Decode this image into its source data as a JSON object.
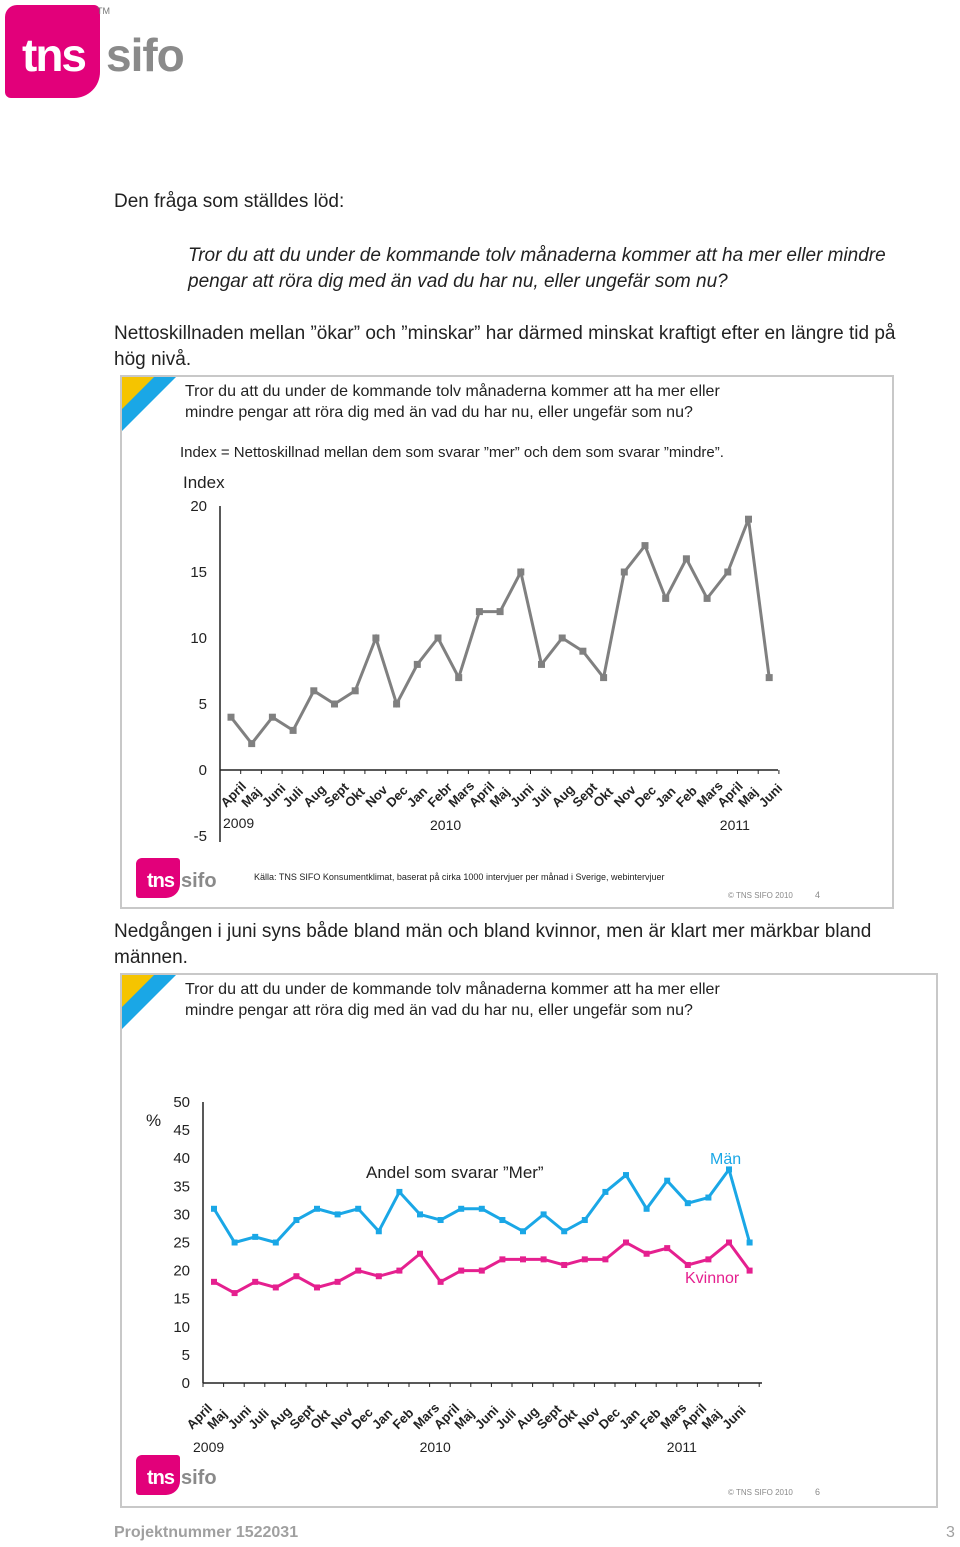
{
  "logo": {
    "tns": "tns",
    "sifo": "sifo",
    "tm": "TM"
  },
  "intro": {
    "lead": "Den fråga som ställdes löd:",
    "question_line1": "Tror du att du under de kommande tolv månaderna kommer att ha mer eller mindre",
    "question_line2": "pengar att röra dig med än vad du har nu, eller ungefär som nu?",
    "para1_line1": "Nettoskillnaden mellan ”ökar” och ”minskar” har därmed minskat kraftigt efter en längre tid på",
    "para1_line2": "hög nivå.",
    "para2_line1": "Nedgången i juni syns både bland män och bland kvinnor, men är klart mer märkbar bland",
    "para2_line2": "männen."
  },
  "slide1": {
    "question_line1": "Tror du att du under de kommande tolv månaderna kommer att ha mer eller",
    "question_line2": "mindre pengar att röra dig med än vad du har nu, eller ungefär som nu?",
    "index_note": "Index = Nettoskillnad mellan dem som svarar ”mer” och dem som svarar ”mindre”.",
    "source": "Källa: TNS SIFO Konsumentklimat, baserat på cirka 1000 intervjuer per månad i Sverige, webintervjuer",
    "copyright": "© TNS SIFO 2010",
    "page": "4"
  },
  "slide2": {
    "question_line1": "Tror du att du under de kommande tolv månaderna kommer att ha mer eller",
    "question_line2": "mindre pengar att röra dig med än vad du har nu, eller ungefär som nu?",
    "copyright": "© TNS SIFO 2010",
    "page": "6"
  },
  "footer": {
    "project": "Projektnummer 1522031",
    "page": "3"
  },
  "colors": {
    "brand": "#e2007a",
    "gray_line": "#808080",
    "men": "#1aa7e6",
    "women": "#e5208f"
  },
  "chart_data": [
    {
      "type": "line",
      "ylabel": "Index",
      "ylim": [
        -5,
        20
      ],
      "yticks": [
        -5,
        0,
        5,
        10,
        15,
        20
      ],
      "categories": [
        "April",
        "Maj",
        "Juni",
        "Juli",
        "Aug",
        "Sept",
        "Okt",
        "Nov",
        "Dec",
        "Jan",
        "Febr",
        "Mars",
        "April",
        "Maj",
        "Juni",
        "Juli",
        "Aug",
        "Sept",
        "Okt",
        "Nov",
        "Dec",
        "Jan",
        "Feb",
        "Mars",
        "April",
        "Maj",
        "Juni"
      ],
      "year_labels": [
        {
          "label": "2009",
          "index": 0
        },
        {
          "label": "2010",
          "index": 10
        },
        {
          "label": "2011",
          "index": 24
        }
      ],
      "series": [
        {
          "values": [
            4,
            2,
            4,
            3,
            6,
            5,
            6,
            10,
            5,
            8,
            10,
            7,
            12,
            12,
            15,
            8,
            10,
            9,
            7,
            15,
            17,
            13,
            16,
            13,
            15,
            19,
            7
          ]
        }
      ]
    },
    {
      "type": "line",
      "ylabel": "%",
      "ylim": [
        0,
        50
      ],
      "yticks": [
        0,
        5,
        10,
        15,
        20,
        25,
        30,
        35,
        40,
        45,
        50
      ],
      "annotation": "Andel som svarar ”Mer”",
      "categories": [
        "April",
        "Maj",
        "Juni",
        "Juli",
        "Aug",
        "Sept",
        "Okt",
        "Nov",
        "Dec",
        "Jan",
        "Feb",
        "Mars",
        "April",
        "Maj",
        "Juni",
        "Juli",
        "Aug",
        "Sept",
        "Okt",
        "Nov",
        "Dec",
        "Jan",
        "Feb",
        "Mars",
        "April",
        "Maj",
        "Juni"
      ],
      "year_labels": [
        {
          "label": "2009",
          "index": 0
        },
        {
          "label": "2010",
          "index": 11
        },
        {
          "label": "2011",
          "index": 23
        }
      ],
      "series": [
        {
          "name": "Män",
          "values": [
            31,
            25,
            26,
            25,
            29,
            31,
            30,
            31,
            27,
            34,
            30,
            29,
            31,
            31,
            29,
            27,
            30,
            27,
            29,
            34,
            37,
            31,
            36,
            32,
            33,
            38,
            25
          ]
        },
        {
          "name": "Kvinnor",
          "values": [
            18,
            16,
            18,
            17,
            19,
            17,
            18,
            20,
            19,
            20,
            23,
            18,
            20,
            20,
            22,
            22,
            22,
            21,
            22,
            22,
            25,
            23,
            24,
            21,
            22,
            25,
            20
          ]
        }
      ]
    }
  ]
}
